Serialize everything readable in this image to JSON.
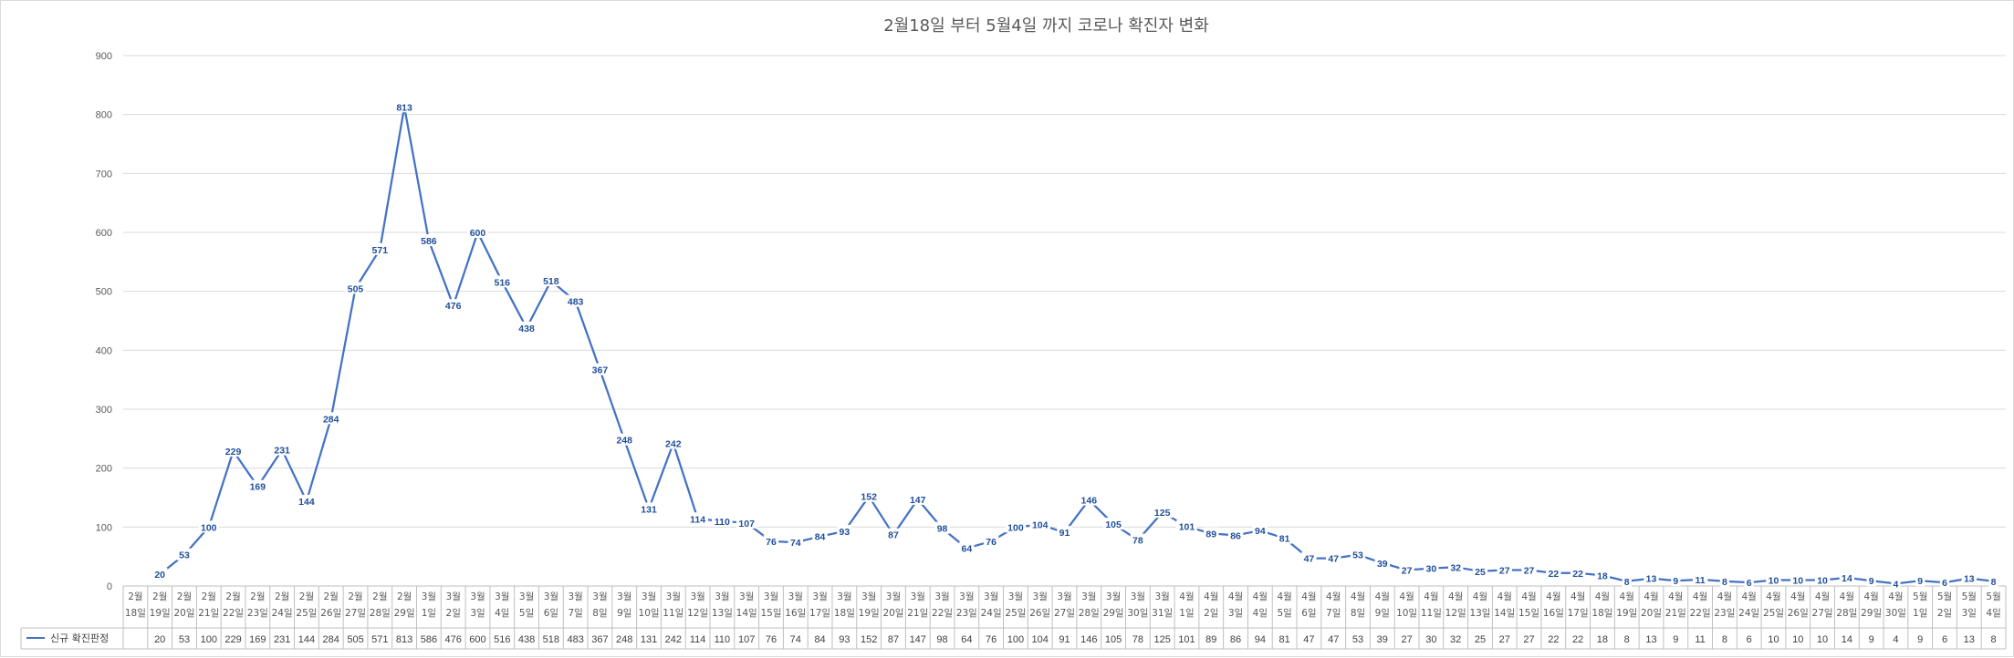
{
  "chart_data": {
    "type": "line",
    "title": "2월18일 부터 5월4일 까지 코로나 확진자 변화",
    "ylim": [
      0,
      900
    ],
    "yticks": [
      0,
      100,
      200,
      300,
      400,
      500,
      600,
      700,
      800,
      900
    ],
    "grid": true,
    "legend_position": "bottom-left data table",
    "colors": {
      "series": "#4472c4",
      "labels": "#1f4e9c"
    },
    "categories": [
      "2월 18일",
      "2월 19일",
      "2월 20일",
      "2월 21일",
      "2월 22일",
      "2월 23일",
      "2월 24일",
      "2월 25일",
      "2월 26일",
      "2월 27일",
      "2월 28일",
      "2월 29일",
      "3월 1일",
      "3월 2일",
      "3월 3일",
      "3월 4일",
      "3월 5일",
      "3월 6일",
      "3월 7일",
      "3월 8일",
      "3월 9일",
      "3월 10일",
      "3월 11일",
      "3월 12일",
      "3월 13일",
      "3월 14일",
      "3월 15일",
      "3월 16일",
      "3월 17일",
      "3월 18일",
      "3월 19일",
      "3월 20일",
      "3월 21일",
      "3월 22일",
      "3월 23일",
      "3월 24일",
      "3월 25일",
      "3월 26일",
      "3월 27일",
      "3월 28일",
      "3월 29일",
      "3월 30일",
      "3월 31일",
      "4월 1일",
      "4월 2일",
      "4월 3일",
      "4월 4일",
      "4월 5일",
      "4월 6일",
      "4월 7일",
      "4월 8일",
      "4월 9일",
      "4월 10일",
      "4월 11일",
      "4월 12일",
      "4월 13일",
      "4월 14일",
      "4월 15일",
      "4월 16일",
      "4월 17일",
      "4월 18일",
      "4월 19일",
      "4월 20일",
      "4월 21일",
      "4월 22일",
      "4월 23일",
      "4월 24일",
      "4월 25일",
      "4월 26일",
      "4월 27일",
      "4월 28일",
      "4월 29일",
      "4월 30일",
      "5월1일",
      "5월2일",
      "5월3일",
      "5월4일"
    ],
    "series": [
      {
        "name": "신규 확진판정",
        "values": [
          null,
          20,
          53,
          100,
          229,
          169,
          231,
          144,
          284,
          505,
          571,
          813,
          586,
          476,
          600,
          516,
          438,
          518,
          483,
          367,
          248,
          131,
          242,
          114,
          110,
          107,
          76,
          74,
          84,
          93,
          152,
          87,
          147,
          98,
          64,
          76,
          100,
          104,
          91,
          146,
          105,
          78,
          125,
          101,
          89,
          86,
          94,
          81,
          47,
          47,
          53,
          39,
          27,
          30,
          32,
          25,
          27,
          27,
          22,
          22,
          18,
          8,
          13,
          9,
          11,
          8,
          6,
          10,
          10,
          10,
          14,
          9,
          4,
          9,
          6,
          13,
          8
        ]
      }
    ]
  }
}
